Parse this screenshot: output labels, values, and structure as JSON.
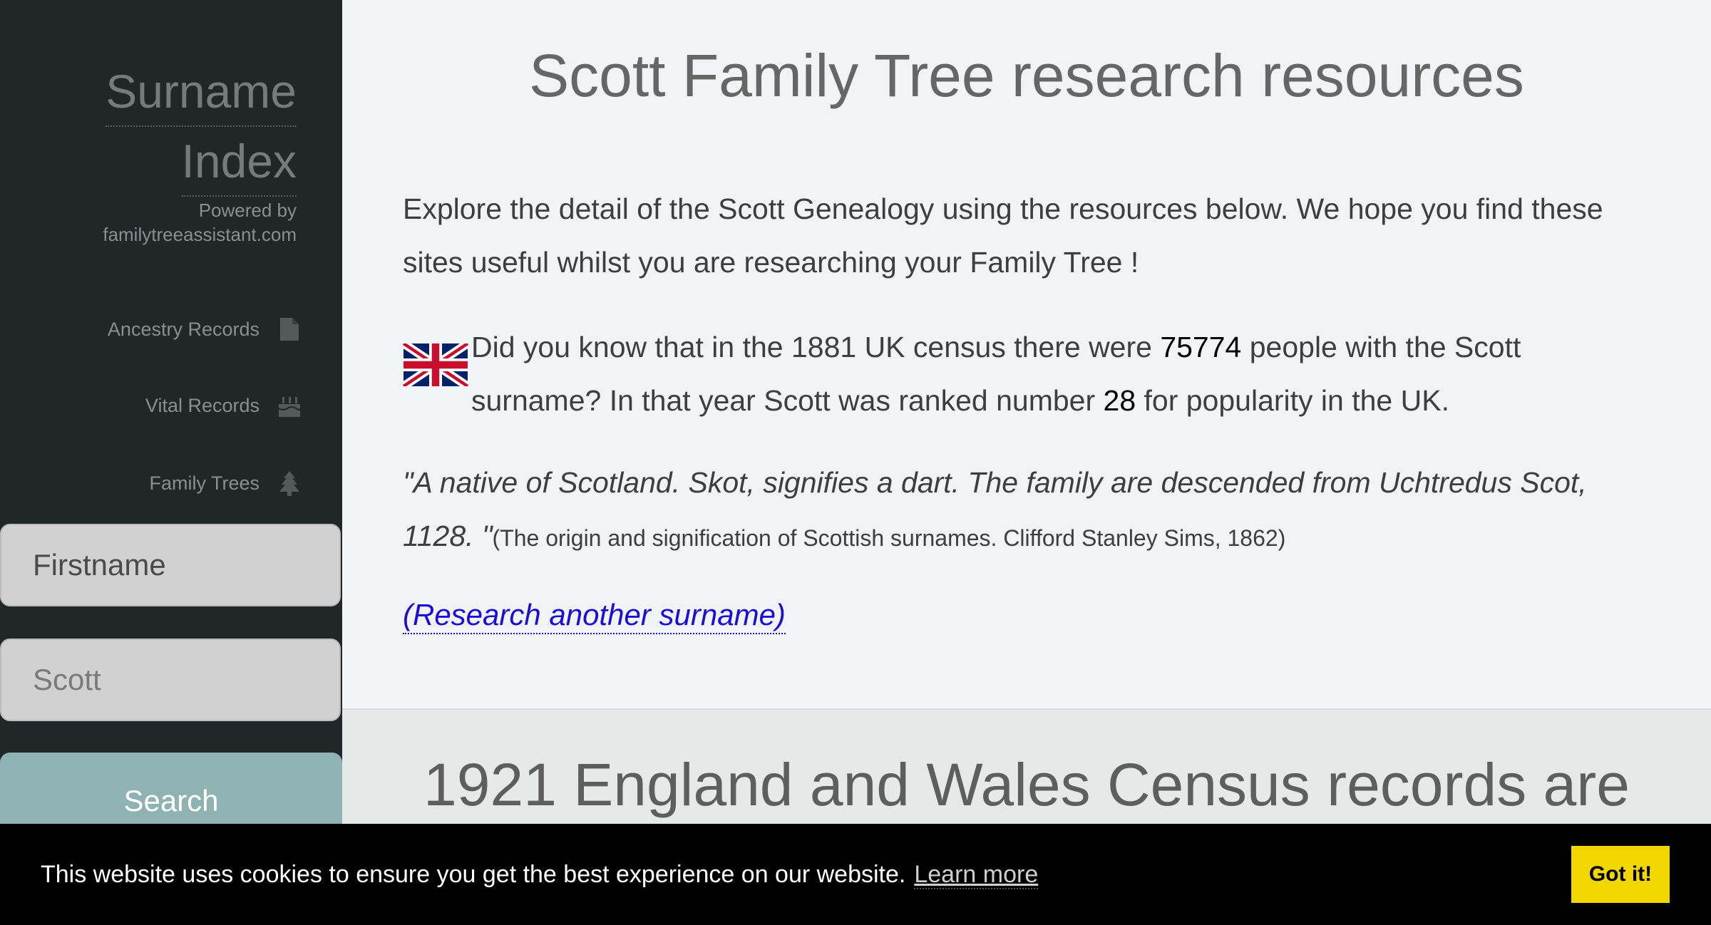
{
  "sidebar": {
    "brand_line1": "Surname",
    "brand_line2": "Index",
    "powered_by": "Powered by",
    "powered_site": "familytreeassistant.com",
    "nav": [
      {
        "label": "Ancestry Records",
        "icon": "document-icon"
      },
      {
        "label": "Vital Records",
        "icon": "cake-icon"
      },
      {
        "label": "Family Trees",
        "icon": "tree-icon"
      }
    ],
    "firstname_placeholder": "Firstname",
    "surname_value": "Scott",
    "search_label": "Search"
  },
  "main": {
    "title": "Scott Family Tree research resources",
    "intro": "Explore the detail of the Scott Genealogy using the resources below. We hope you find these sites useful whilst you are researching your Family Tree !",
    "census": {
      "flag_icon": "uk-flag-icon",
      "text_a": "Did you know that in the 1881 UK census there were ",
      "count": "75774",
      "text_b": " people with the Scott surname? In that year Scott was ranked number ",
      "rank": "28",
      "text_c": " for popularity in the UK."
    },
    "quote": "\"A native of Scotland. Skot, signifies a dart. The family are descended from Uchtredus Scot, 1128. \"",
    "citation": "(The origin and signification of Scottish surnames. Clifford Stanley Sims, 1862)",
    "research_link": "(Research another surname)",
    "section2_title": "1921 England and Wales Census records are"
  },
  "cookie": {
    "message": "This website uses cookies to ensure you get the best experience on our website.",
    "learn_more": "Learn more",
    "got_it": "Got it!"
  },
  "colors": {
    "sidebar_bg": "#212629",
    "search_button": "#8fb3b2",
    "link": "#1a0dd8",
    "cookie_button": "#f1d600"
  }
}
